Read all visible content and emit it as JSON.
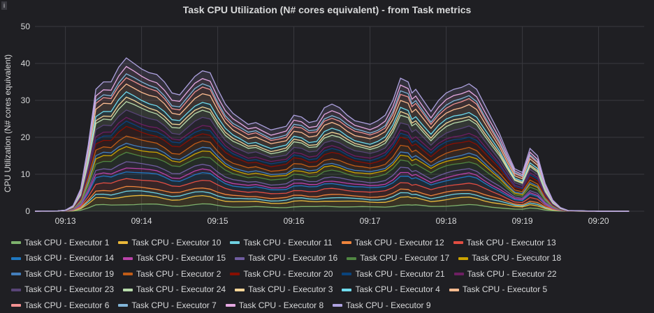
{
  "panel": {
    "title": "Task CPU Utilization (N# cores equivalent) - from Task metrics",
    "info_icon": "info-icon"
  },
  "chart_data": {
    "type": "area",
    "stacked": true,
    "title": "Task CPU Utilization (N# cores equivalent) - from Task metrics",
    "ylabel": "CPU Utilization (N# cores equivalent)",
    "xlabel": "",
    "ylim": [
      0,
      50
    ],
    "yticks": [
      0,
      10,
      20,
      30,
      40,
      50
    ],
    "xticks": [
      "09:13",
      "09:14",
      "09:15",
      "09:16",
      "09:17",
      "09:18",
      "09:19",
      "09:20"
    ],
    "xlim_minutes": [
      12.6,
      20.6
    ],
    "grid": true,
    "legend_position": "bottom",
    "x": [
      12.6,
      12.9,
      13.0,
      13.1,
      13.2,
      13.3,
      13.4,
      13.5,
      13.6,
      13.7,
      13.8,
      13.9,
      14.0,
      14.1,
      14.2,
      14.3,
      14.4,
      14.5,
      14.6,
      14.7,
      14.8,
      14.9,
      15.0,
      15.1,
      15.2,
      15.3,
      15.4,
      15.5,
      15.6,
      15.7,
      15.8,
      15.9,
      16.0,
      16.1,
      16.2,
      16.3,
      16.4,
      16.5,
      16.6,
      16.7,
      16.8,
      16.9,
      17.0,
      17.1,
      17.2,
      17.3,
      17.4,
      17.5,
      17.55,
      17.6,
      17.7,
      17.8,
      17.9,
      18.0,
      18.1,
      18.2,
      18.3,
      18.4,
      18.5,
      18.6,
      18.7,
      18.8,
      18.9,
      19.0,
      19.1,
      19.2,
      19.3,
      19.4,
      19.5,
      19.6,
      20.0,
      20.4
    ],
    "total": [
      0,
      0.1,
      0.3,
      1.5,
      6,
      18,
      33,
      35,
      35,
      39,
      41.5,
      40,
      38.5,
      37.5,
      37,
      35,
      32,
      31.5,
      34,
      36.5,
      38,
      37.5,
      33,
      29,
      26.5,
      25,
      23.5,
      24,
      23,
      22,
      22.5,
      23,
      26,
      25.5,
      24,
      24.5,
      28,
      29,
      28,
      26,
      24.5,
      24,
      23.5,
      24.5,
      26,
      30,
      36,
      35,
      32,
      33,
      30,
      27,
      30,
      32,
      33,
      33.5,
      34.5,
      33,
      29,
      25,
      21,
      16,
      11.5,
      10.5,
      17,
      15,
      7.5,
      3,
      1,
      0.2,
      0,
      0
    ],
    "series_names": [
      "Task CPU - Executor 1",
      "Task CPU - Executor 10",
      "Task CPU - Executor 11",
      "Task CPU - Executor 12",
      "Task CPU - Executor 13",
      "Task CPU - Executor 14",
      "Task CPU - Executor 15",
      "Task CPU - Executor 16",
      "Task CPU - Executor 17",
      "Task CPU - Executor 18",
      "Task CPU - Executor 19",
      "Task CPU - Executor 2",
      "Task CPU - Executor 20",
      "Task CPU - Executor 21",
      "Task CPU - Executor 22",
      "Task CPU - Executor 23",
      "Task CPU - Executor 24",
      "Task CPU - Executor 3",
      "Task CPU - Executor 4",
      "Task CPU - Executor 5",
      "Task CPU - Executor 6",
      "Task CPU - Executor 7",
      "Task CPU - Executor 8",
      "Task CPU - Executor 9"
    ],
    "series_colors": [
      "#7eb26d",
      "#eab839",
      "#6ed0e0",
      "#ef843c",
      "#e24d42",
      "#1f78c1",
      "#ba43a9",
      "#705da0",
      "#508642",
      "#cca300",
      "#447ebc",
      "#c15c17",
      "#890f02",
      "#0a437c",
      "#6d1f62",
      "#584477",
      "#b7dbab",
      "#f4d598",
      "#70dbed",
      "#f9ba8f",
      "#f29191",
      "#82b5d8",
      "#e5a8e2",
      "#aea2e0"
    ]
  },
  "legend": [
    {
      "label": "Task CPU - Executor 1",
      "color": "#7eb26d"
    },
    {
      "label": "Task CPU - Executor 10",
      "color": "#eab839"
    },
    {
      "label": "Task CPU - Executor 11",
      "color": "#6ed0e0"
    },
    {
      "label": "Task CPU - Executor 12",
      "color": "#ef843c"
    },
    {
      "label": "Task CPU - Executor 13",
      "color": "#e24d42"
    },
    {
      "label": "Task CPU - Executor 14",
      "color": "#1f78c1"
    },
    {
      "label": "Task CPU - Executor 15",
      "color": "#ba43a9"
    },
    {
      "label": "Task CPU - Executor 16",
      "color": "#705da0"
    },
    {
      "label": "Task CPU - Executor 17",
      "color": "#508642"
    },
    {
      "label": "Task CPU - Executor 18",
      "color": "#cca300"
    },
    {
      "label": "Task CPU - Executor 19",
      "color": "#447ebc"
    },
    {
      "label": "Task CPU - Executor 2",
      "color": "#c15c17"
    },
    {
      "label": "Task CPU - Executor 20",
      "color": "#890f02"
    },
    {
      "label": "Task CPU - Executor 21",
      "color": "#0a437c"
    },
    {
      "label": "Task CPU - Executor 22",
      "color": "#6d1f62"
    },
    {
      "label": "Task CPU - Executor 23",
      "color": "#584477"
    },
    {
      "label": "Task CPU - Executor 24",
      "color": "#b7dbab"
    },
    {
      "label": "Task CPU - Executor 3",
      "color": "#f4d598"
    },
    {
      "label": "Task CPU - Executor 4",
      "color": "#70dbed"
    },
    {
      "label": "Task CPU - Executor 5",
      "color": "#f9ba8f"
    },
    {
      "label": "Task CPU - Executor 6",
      "color": "#f29191"
    },
    {
      "label": "Task CPU - Executor 7",
      "color": "#82b5d8"
    },
    {
      "label": "Task CPU - Executor 8",
      "color": "#e5a8e2"
    },
    {
      "label": "Task CPU - Executor 9",
      "color": "#aea2e0"
    }
  ]
}
